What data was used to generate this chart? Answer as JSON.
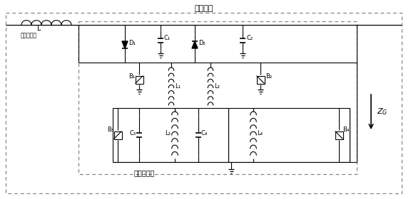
{
  "title": "物理边界",
  "label_filter": "直流滤波器",
  "label_L": "L",
  "label_reactor": "平波电抗器",
  "label_ZG": "$Z_G$",
  "bg_color": "#ffffff",
  "line_color": "#000000",
  "figsize": [
    5.76,
    2.8
  ],
  "dpi": 100
}
